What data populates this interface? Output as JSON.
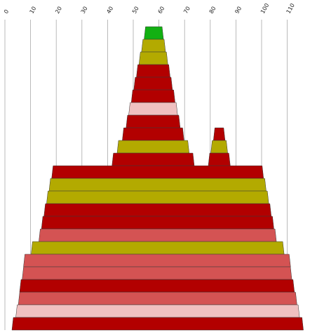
{
  "chart_data": {
    "type": "area",
    "title": "",
    "xlabel": "",
    "ylabel": "",
    "grid": true,
    "x_axis": {
      "position": "top",
      "range": [
        0,
        115
      ],
      "ticks": [
        0,
        10,
        20,
        30,
        40,
        50,
        60,
        70,
        80,
        90,
        100,
        110
      ],
      "tick_labels": [
        "0",
        "10",
        "20",
        "30",
        "40",
        "50",
        "60",
        "70",
        "80",
        "90",
        "100",
        "110"
      ]
    },
    "colors": {
      "green": "#12b012",
      "olive": "#b3aa00",
      "red": "#b20000",
      "rose": "#d45353",
      "pink": "#f0c0c0",
      "outline": "#3a3a3a",
      "grid": "#a9a9a9"
    },
    "bands": [
      {
        "layer": 1,
        "x_start": 54.5,
        "x_end": 61.5,
        "color": "green"
      },
      {
        "layer": 2,
        "x_start": 53.5,
        "x_end": 62.3,
        "color": "olive"
      },
      {
        "layer": 3,
        "x_start": 52.5,
        "x_end": 63.2,
        "color": "olive"
      },
      {
        "layer": 4,
        "x_start": 51.5,
        "x_end": 64.1,
        "color": "red"
      },
      {
        "layer": 5,
        "x_start": 50.5,
        "x_end": 65.0,
        "color": "red"
      },
      {
        "layer": 6,
        "x_start": 49.5,
        "x_end": 66.0,
        "color": "red"
      },
      {
        "layer": 7,
        "x_start": 48.5,
        "x_end": 67.0,
        "color": "pink"
      },
      {
        "layer": 8,
        "x_start": 47.5,
        "x_end": 68.0,
        "color": "red"
      },
      {
        "layer": 9,
        "x_start": 46.0,
        "x_end": 69.5,
        "color": "red"
      },
      {
        "layer": 9,
        "x_start": 81.5,
        "x_end": 85.5,
        "color": "red"
      },
      {
        "layer": 10,
        "x_start": 44.0,
        "x_end": 71.5,
        "color": "olive"
      },
      {
        "layer": 10,
        "x_start": 80.5,
        "x_end": 86.5,
        "color": "olive"
      },
      {
        "layer": 11,
        "x_start": 42.0,
        "x_end": 73.5,
        "color": "red"
      },
      {
        "layer": 11,
        "x_start": 79.5,
        "x_end": 87.5,
        "color": "red"
      },
      {
        "layer": 12,
        "x_start": 18.5,
        "x_end": 100.5,
        "color": "red"
      },
      {
        "layer": 13,
        "x_start": 17.5,
        "x_end": 101.5,
        "color": "olive"
      },
      {
        "layer": 14,
        "x_start": 16.5,
        "x_end": 102.5,
        "color": "olive"
      },
      {
        "layer": 15,
        "x_start": 15.5,
        "x_end": 103.5,
        "color": "red"
      },
      {
        "layer": 16,
        "x_start": 14.5,
        "x_end": 104.5,
        "color": "red"
      },
      {
        "layer": 17,
        "x_start": 13.5,
        "x_end": 105.5,
        "color": "rose"
      },
      {
        "layer": 18,
        "x_start": 10.5,
        "x_end": 108.5,
        "color": "olive"
      },
      {
        "layer": 19,
        "x_start": 7.5,
        "x_end": 111.0,
        "color": "rose"
      },
      {
        "layer": 20,
        "x_start": 7.0,
        "x_end": 111.5,
        "color": "rose"
      },
      {
        "layer": 21,
        "x_start": 6.0,
        "x_end": 112.5,
        "color": "red"
      },
      {
        "layer": 22,
        "x_start": 5.5,
        "x_end": 113.5,
        "color": "rose"
      },
      {
        "layer": 23,
        "x_start": 4.5,
        "x_end": 114.5,
        "color": "pink"
      },
      {
        "layer": 24,
        "x_start": 3.0,
        "x_end": 116.0,
        "color": "red"
      }
    ]
  }
}
